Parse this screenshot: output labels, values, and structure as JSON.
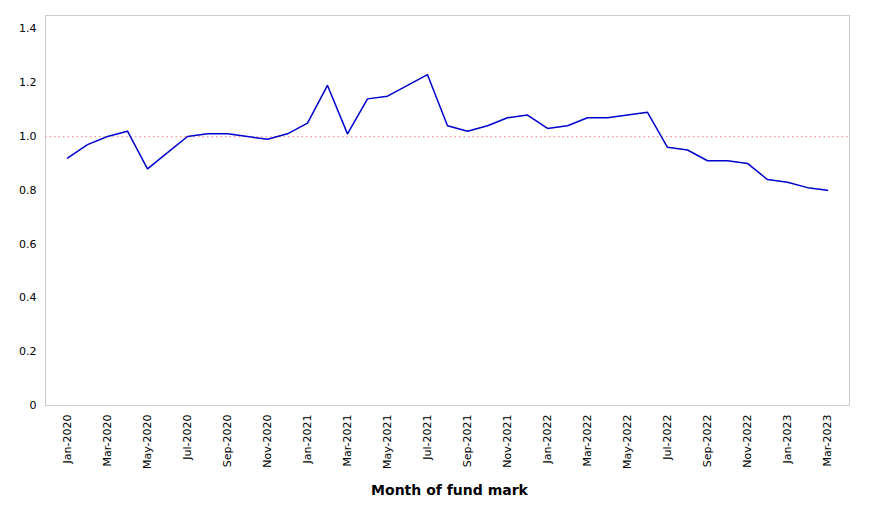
{
  "chart_data": {
    "type": "line",
    "xlabel": "Month of fund mark",
    "categories": [
      "Jan-2020",
      null,
      "Mar-2020",
      null,
      "May-2020",
      null,
      "Jul-2020",
      null,
      "Sep-2020",
      null,
      "Nov-2020",
      null,
      "Jan-2021",
      null,
      "Mar-2021",
      null,
      "May-2021",
      null,
      "Jul-2021",
      null,
      "Sep-2021",
      null,
      "Nov-2021",
      null,
      "Jan-2022",
      null,
      "Mar-2022",
      null,
      "May-2022",
      null,
      "Jul-2022",
      null,
      "Sep-2022",
      null,
      "Nov-2022",
      null,
      "Jan-2023",
      null,
      "Mar-2023"
    ],
    "values": [
      0.92,
      0.97,
      1.0,
      1.02,
      0.88,
      0.94,
      1.0,
      1.01,
      1.01,
      1.0,
      0.99,
      1.01,
      1.05,
      1.19,
      1.01,
      1.14,
      1.15,
      1.19,
      1.23,
      1.04,
      1.02,
      1.04,
      1.07,
      1.08,
      1.03,
      1.04,
      1.07,
      1.07,
      1.08,
      1.09,
      0.96,
      0.95,
      0.91,
      0.91,
      0.9,
      0.84,
      0.83,
      0.81,
      0.8
    ],
    "color": "#0000CC",
    "reference_line": {
      "y": 1.0,
      "color": "#FF9999",
      "line_style": "dotted"
    },
    "ylim": [
      0,
      1.45
    ],
    "yticks": [
      0,
      0.2,
      0.4,
      0.6,
      0.8,
      {
        "value": 1.0,
        "label": "1.0"
      },
      1.2,
      1.4
    ],
    "grid": false
  }
}
